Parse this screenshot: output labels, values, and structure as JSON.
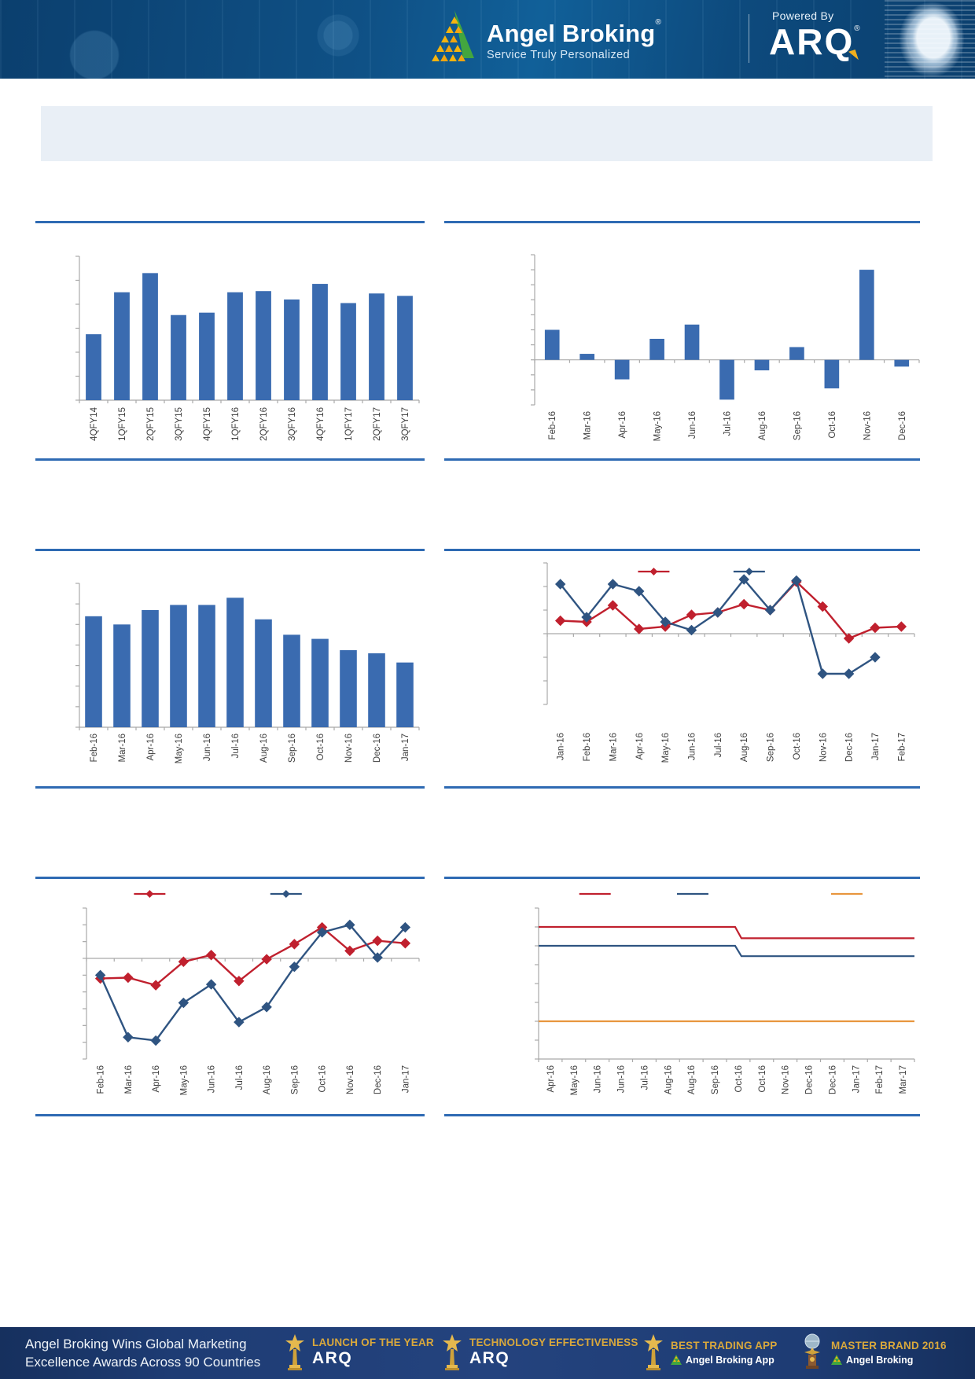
{
  "header": {
    "brand_name": "Angel Broking",
    "brand_reg": "®",
    "tagline": "Service Truly Personalized",
    "powered_by_label": "Powered By",
    "powered_by_product": "ARQ",
    "powered_by_reg": "®"
  },
  "title_box": {
    "text": ""
  },
  "colors": {
    "bar_blue": "#3a6bb0",
    "line_red": "#c0202e",
    "line_blue": "#2f5481",
    "line_orange": "#e8963e",
    "rule_blue": "#2e6ab3",
    "axis_grey": "#a9a9a9",
    "label_grey": "#3d3d3d",
    "header_navy": "#0d4a7d",
    "footer_navy": "#1e3c74",
    "gold": "#d9a83c",
    "title_box_bg": "#e9eff6"
  },
  "chart_data": [
    {
      "id": "quarterly-bar",
      "type": "bar",
      "title": "",
      "categories": [
        "4QFY14",
        "1QFY15",
        "2QFY15",
        "3QFY15",
        "4QFY15",
        "1QFY16",
        "2QFY16",
        "3QFY16",
        "4QFY16",
        "1QFY17",
        "2QFY17",
        "3QFY17"
      ],
      "values": [
        2.75,
        4.5,
        5.3,
        3.55,
        3.65,
        4.5,
        4.55,
        4.2,
        4.85,
        4.05,
        4.45,
        4.35
      ],
      "ylim": [
        0,
        6
      ],
      "ytick_step": 1,
      "grid": false,
      "legend": []
    },
    {
      "id": "monthly-change-bar",
      "type": "bar",
      "title": "",
      "categories": [
        "Feb-16",
        "Mar-16",
        "Apr-16",
        "May-16",
        "Jun-16",
        "Jul-16",
        "Aug-16",
        "Sep-16",
        "Oct-16",
        "Nov-16",
        "Dec-16"
      ],
      "values": [
        2.0,
        0.4,
        -1.3,
        1.4,
        2.35,
        -2.65,
        -0.7,
        0.85,
        -1.9,
        6.0,
        -0.45
      ],
      "ylim": [
        -3,
        7
      ],
      "ytick_step": 1,
      "grid": false,
      "legend": []
    },
    {
      "id": "monthly-level-bar",
      "type": "bar",
      "title": "",
      "categories": [
        "Feb-16",
        "Mar-16",
        "Apr-16",
        "May-16",
        "Jun-16",
        "Jul-16",
        "Aug-16",
        "Sep-16",
        "Oct-16",
        "Nov-16",
        "Dec-16",
        "Jan-17"
      ],
      "values": [
        5.4,
        5.0,
        5.7,
        5.95,
        5.95,
        6.3,
        5.25,
        4.5,
        4.3,
        3.75,
        3.6,
        3.15
      ],
      "ylim": [
        0,
        7
      ],
      "ytick_step": 1,
      "grid": false,
      "legend": []
    },
    {
      "id": "dual-line-jan16-feb17",
      "type": "line",
      "title": "",
      "categories": [
        "Jan-16",
        "Feb-16",
        "Mar-16",
        "Apr-16",
        "May-16",
        "Jun-16",
        "Jul-16",
        "Aug-16",
        "Sep-16",
        "Oct-16",
        "Nov-16",
        "Dec-16",
        "Jan-17",
        "Feb-17"
      ],
      "series": [
        {
          "name": "",
          "color": "#c0202e",
          "marker": "diamond",
          "values": [
            0.55,
            0.5,
            1.2,
            0.2,
            0.3,
            0.8,
            0.9,
            1.25,
            1.0,
            2.2,
            1.15,
            -0.2,
            0.25,
            0.3
          ]
        },
        {
          "name": "",
          "color": "#2f5481",
          "marker": "diamond",
          "values": [
            2.1,
            0.7,
            2.1,
            1.8,
            0.5,
            0.15,
            0.9,
            2.3,
            1.0,
            2.25,
            -1.7,
            -1.7,
            -1.0,
            null
          ]
        }
      ],
      "ylim": [
        -3,
        3
      ],
      "ytick_step": 1,
      "grid": false,
      "legend_position": "top-inside",
      "legend_fractions": [
        0.29,
        0.55
      ]
    },
    {
      "id": "dual-line-feb16-jan17",
      "type": "line",
      "title": "",
      "categories": [
        "Feb-16",
        "Mar-16",
        "Apr-16",
        "May-16",
        "Jun-16",
        "Jul-16",
        "Aug-16",
        "Sep-16",
        "Oct-16",
        "Nov-16",
        "Dec-16",
        "Jan-17"
      ],
      "series": [
        {
          "name": "",
          "color": "#c0202e",
          "marker": "diamond",
          "values": [
            -1.2,
            -1.15,
            -1.6,
            -0.2,
            0.2,
            -1.35,
            -0.05,
            0.85,
            1.85,
            0.45,
            1.05,
            0.9
          ]
        },
        {
          "name": "",
          "color": "#2f5481",
          "marker": "diamond",
          "values": [
            -1.0,
            -4.7,
            -4.9,
            -2.65,
            -1.55,
            -3.8,
            -2.9,
            -0.5,
            1.55,
            2.0,
            0.05,
            1.85
          ]
        }
      ],
      "ylim": [
        -6,
        3
      ],
      "ytick_step": 1,
      "grid": false,
      "legend_position": "top-inside",
      "legend_fractions": [
        0.19,
        0.6
      ]
    },
    {
      "id": "step-lines",
      "type": "step-line",
      "title": "",
      "categories": [
        "Apr-16",
        "May-16",
        "Jun-16",
        "Jun-16",
        "Jul-16",
        "Aug-16",
        "Aug-16",
        "Sep-16",
        "Oct-16",
        "Oct-16",
        "Nov-16",
        "Dec-16",
        "Dec-16",
        "Jan-17",
        "Feb-17",
        "Mar-17"
      ],
      "step_at": 8,
      "series": [
        {
          "name": "",
          "color": "#c0202e",
          "before": 7.0,
          "after": 6.4
        },
        {
          "name": "",
          "color": "#2f5481",
          "before": 6.0,
          "after": 5.45
        },
        {
          "name": "",
          "color": "#e8963e",
          "before": 2.0,
          "after": 2.0
        }
      ],
      "ylim": [
        0,
        8
      ],
      "ytick_step": 1,
      "grid": false,
      "legend_position": "top-inside",
      "legend_fractions": [
        0.15,
        0.41,
        0.82
      ]
    }
  ],
  "footer": {
    "headline": [
      "Angel Broking Wins Global Marketing",
      "Excellence Awards Across 90 Countries"
    ],
    "awards": [
      {
        "icon": "trophy-star-icon",
        "title": "LAUNCH OF THE YEAR",
        "subtitle": "ARQ",
        "subtitle_style": "wordmark"
      },
      {
        "icon": "trophy-star-icon",
        "title": "TECHNOLOGY EFFECTIVENESS",
        "subtitle": "ARQ",
        "subtitle_style": "wordmark"
      },
      {
        "icon": "trophy-star-icon",
        "title": "BEST TRADING APP",
        "subtitle": "Angel Broking App",
        "subtitle_style": "logo-text",
        "subtitle_icon": "angel-pyramid-icon"
      },
      {
        "icon": "trophy-globe-icon",
        "title": "MASTER BRAND 2016",
        "subtitle": "Angel Broking",
        "subtitle_style": "logo-text",
        "subtitle_icon": "angel-pyramid-icon"
      }
    ]
  }
}
